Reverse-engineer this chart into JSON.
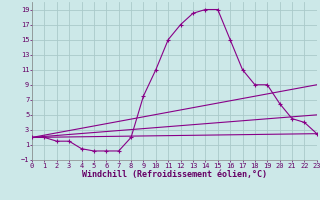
{
  "xlabel": "Windchill (Refroidissement éolien,°C)",
  "background_color": "#cce8e8",
  "grid_color": "#aacaca",
  "line_color": "#880088",
  "xlim": [
    0,
    23
  ],
  "ylim": [
    -1,
    20
  ],
  "xticks": [
    0,
    1,
    2,
    3,
    4,
    5,
    6,
    7,
    8,
    9,
    10,
    11,
    12,
    13,
    14,
    15,
    16,
    17,
    18,
    19,
    20,
    21,
    22,
    23
  ],
  "yticks": [
    -1,
    1,
    3,
    5,
    7,
    9,
    11,
    13,
    15,
    17,
    19
  ],
  "series_main_x": [
    0,
    1,
    2,
    3,
    4,
    5,
    6,
    7,
    8,
    9,
    10,
    11,
    12,
    13,
    14,
    15,
    16,
    17,
    18,
    19,
    20,
    21,
    22,
    23
  ],
  "series_main_y": [
    2,
    2,
    1.5,
    1.5,
    0.5,
    0.2,
    0.2,
    0.2,
    2,
    7.5,
    11,
    15,
    17,
    18.5,
    19,
    19,
    15,
    11,
    9,
    9,
    6.5,
    4.5,
    4,
    2.5
  ],
  "line1_x": [
    0,
    23
  ],
  "line1_y": [
    2,
    2.5
  ],
  "line2_x": [
    0,
    23
  ],
  "line2_y": [
    2,
    5.0
  ],
  "line3_x": [
    0,
    23
  ],
  "line3_y": [
    2,
    9.0
  ],
  "tick_color": "#660066",
  "label_fontsize": 5.5,
  "tick_fontsize": 5.0,
  "xlabel_fontsize": 6.0
}
